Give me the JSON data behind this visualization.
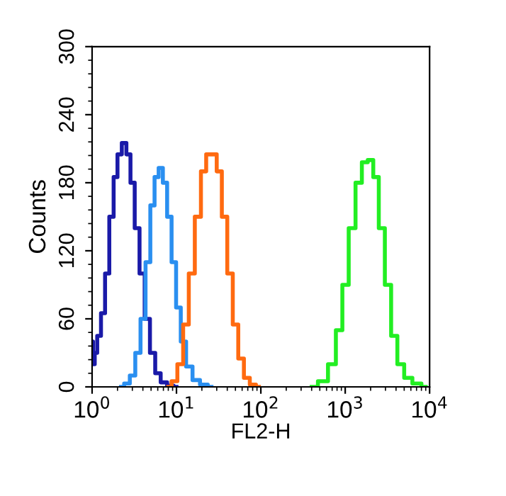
{
  "chart_data": {
    "type": "step",
    "xlabel": "FL2-H",
    "ylabel": "Counts",
    "log": "x",
    "grid": false,
    "legend": false,
    "xlim": [
      1,
      10000
    ],
    "xticks": [
      {
        "value": 1,
        "label": "10$^{0}$"
      },
      {
        "value": 10,
        "label": "10$^{1}$"
      },
      {
        "value": 100,
        "label": "10$^{2}$"
      },
      {
        "value": 1000,
        "label": "10$^{3}$"
      },
      {
        "value": 10000,
        "label": "10$^{4}$"
      }
    ],
    "ylim": [
      0,
      300
    ],
    "yticks": [
      0,
      60,
      120,
      180,
      240,
      300
    ],
    "series": [
      {
        "color": "#1a1aa8",
        "x": [
          1.0,
          1.05,
          1.1,
          1.2,
          1.35,
          1.5,
          1.7,
          1.9,
          2.1,
          2.4,
          2.7,
          3.0,
          3.4,
          3.9,
          4.5,
          5.2,
          6,
          7,
          8.5,
          10
        ],
        "values": [
          40,
          20,
          30,
          45,
          65,
          100,
          150,
          185,
          205,
          215,
          205,
          180,
          140,
          100,
          60,
          30,
          12,
          4,
          1,
          0
        ]
      },
      {
        "color": "#2a8ff0",
        "x": [
          2.2,
          2.6,
          3.0,
          3.5,
          4.0,
          4.6,
          5.2,
          5.8,
          6.5,
          7.3,
          8.2,
          9.3,
          10.5,
          12,
          14,
          17,
          21,
          26
        ],
        "values": [
          0,
          3,
          10,
          30,
          60,
          110,
          160,
          185,
          193,
          180,
          150,
          110,
          70,
          40,
          18,
          6,
          2,
          0
        ]
      },
      {
        "color": "#ff6a10",
        "x": [
          8,
          9.5,
          11,
          13,
          15,
          18,
          21,
          24,
          28,
          32,
          37,
          43,
          50,
          58,
          68,
          80,
          95
        ],
        "values": [
          0,
          5,
          20,
          55,
          100,
          150,
          190,
          205,
          205,
          190,
          150,
          100,
          55,
          25,
          8,
          2,
          0
        ]
      },
      {
        "color": "#22ee22",
        "x": [
          400,
          550,
          700,
          850,
          1000,
          1200,
          1450,
          1700,
          2000,
          2300,
          2700,
          3200,
          3800,
          4500,
          5500,
          7000,
          9000
        ],
        "values": [
          0,
          5,
          20,
          50,
          90,
          140,
          180,
          198,
          200,
          185,
          140,
          90,
          45,
          20,
          8,
          3,
          0
        ]
      }
    ]
  }
}
